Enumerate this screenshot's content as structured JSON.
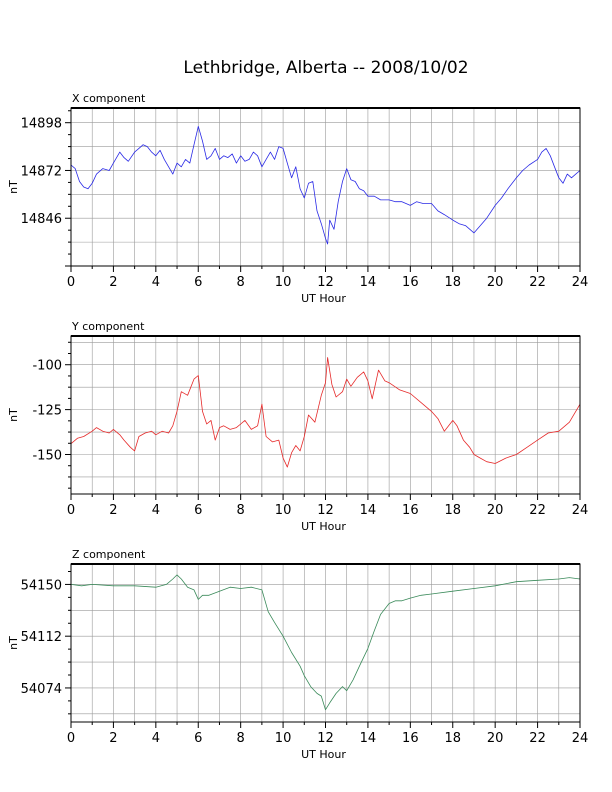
{
  "page": {
    "title": "Lethbridge, Alberta -- 2008/10/02"
  },
  "chart_data": [
    {
      "type": "line",
      "title": "X component",
      "xlabel": "UT Hour",
      "ylabel": "nT",
      "xlim": [
        0,
        24
      ],
      "ylim": [
        14820,
        14906
      ],
      "xticks": [
        "0",
        "2",
        "4",
        "6",
        "8",
        "10",
        "12",
        "14",
        "16",
        "18",
        "20",
        "22",
        "24"
      ],
      "yticks": [
        "14846",
        "14872",
        "14898"
      ],
      "grid": true,
      "color": "#2a2ae6",
      "series": [
        {
          "x": [
            0,
            0.2,
            0.4,
            0.6,
            0.8,
            1.0,
            1.2,
            1.5,
            1.8,
            2.0,
            2.3,
            2.5,
            2.7,
            3.0,
            3.2,
            3.4,
            3.6,
            3.8,
            4.0,
            4.2,
            4.4,
            4.6,
            4.8,
            5.0,
            5.2,
            5.4,
            5.6,
            5.8,
            6.0,
            6.2,
            6.4,
            6.6,
            6.8,
            7.0,
            7.2,
            7.4,
            7.6,
            7.8,
            8.0,
            8.2,
            8.4,
            8.6,
            8.8,
            9.0,
            9.2,
            9.4,
            9.6,
            9.8,
            10.0,
            10.2,
            10.4,
            10.6,
            10.8,
            11.0,
            11.2,
            11.4,
            11.6,
            11.8,
            12.0,
            12.1,
            12.2,
            12.4,
            12.6,
            12.8,
            13.0,
            13.2,
            13.4,
            13.6,
            13.8,
            14.0,
            14.3,
            14.6,
            15.0,
            15.3,
            15.6,
            16.0,
            16.3,
            16.6,
            17.0,
            17.3,
            17.6,
            18.0,
            18.3,
            18.6,
            19.0,
            19.3,
            19.6,
            20.0,
            20.3,
            20.6,
            21.0,
            21.3,
            21.6,
            22.0,
            22.2,
            22.4,
            22.6,
            22.8,
            23.0,
            23.2,
            23.4,
            23.6,
            23.8,
            24.0
          ],
          "values": [
            14875,
            14873,
            14866,
            14863,
            14862,
            14865,
            14870,
            14873,
            14872,
            14876,
            14882,
            14879,
            14877,
            14882,
            14884,
            14886,
            14885,
            14882,
            14880,
            14883,
            14878,
            14874,
            14870,
            14876,
            14874,
            14878,
            14876,
            14886,
            14896,
            14888,
            14878,
            14880,
            14884,
            14878,
            14880,
            14879,
            14881,
            14876,
            14880,
            14877,
            14878,
            14882,
            14880,
            14874,
            14878,
            14882,
            14878,
            14885,
            14884,
            14876,
            14868,
            14874,
            14862,
            14857,
            14865,
            14866,
            14850,
            14843,
            14835,
            14832,
            14845,
            14840,
            14855,
            14866,
            14873,
            14867,
            14866,
            14862,
            14861,
            14858,
            14858,
            14856,
            14856,
            14855,
            14855,
            14853,
            14855,
            14854,
            14854,
            14850,
            14848,
            14845,
            14843,
            14842,
            14838,
            14842,
            14846,
            14853,
            14857,
            14862,
            14868,
            14872,
            14875,
            14878,
            14882,
            14884,
            14880,
            14874,
            14868,
            14865,
            14870,
            14868,
            14870,
            14872
          ]
        }
      ]
    },
    {
      "type": "line",
      "title": "Y component",
      "xlabel": "UT Hour",
      "ylabel": "nT",
      "xlim": [
        0,
        24
      ],
      "ylim": [
        -172,
        -84
      ],
      "xticks": [
        "0",
        "2",
        "4",
        "6",
        "8",
        "10",
        "12",
        "14",
        "16",
        "18",
        "20",
        "22",
        "24"
      ],
      "yticks": [
        "-150",
        "-125",
        "-100"
      ],
      "grid": true,
      "color": "#e62a2a",
      "series": [
        {
          "x": [
            0,
            0.3,
            0.6,
            1.0,
            1.2,
            1.5,
            1.8,
            2.0,
            2.3,
            2.5,
            2.8,
            3.0,
            3.2,
            3.5,
            3.8,
            4.0,
            4.3,
            4.6,
            4.8,
            5.0,
            5.2,
            5.5,
            5.8,
            6.0,
            6.2,
            6.4,
            6.6,
            6.8,
            7.0,
            7.2,
            7.5,
            7.8,
            8.0,
            8.2,
            8.5,
            8.8,
            9.0,
            9.2,
            9.5,
            9.8,
            10.0,
            10.2,
            10.4,
            10.6,
            10.8,
            11.0,
            11.2,
            11.5,
            11.8,
            12.0,
            12.1,
            12.3,
            12.5,
            12.8,
            13.0,
            13.2,
            13.5,
            13.8,
            14.0,
            14.2,
            14.5,
            14.8,
            15.0,
            15.5,
            16.0,
            16.5,
            17.0,
            17.3,
            17.6,
            18.0,
            18.2,
            18.5,
            18.8,
            19.0,
            19.3,
            19.6,
            20.0,
            20.5,
            21.0,
            21.5,
            22.0,
            22.5,
            23.0,
            23.5,
            24.0
          ],
          "values": [
            -144,
            -141,
            -140,
            -137,
            -135,
            -137,
            -138,
            -136,
            -139,
            -142,
            -146,
            -148,
            -140,
            -138,
            -137,
            -139,
            -137,
            -138,
            -134,
            -126,
            -115,
            -117,
            -108,
            -106,
            -126,
            -133,
            -131,
            -142,
            -135,
            -134,
            -136,
            -135,
            -133,
            -131,
            -136,
            -134,
            -122,
            -140,
            -143,
            -142,
            -152,
            -157,
            -149,
            -145,
            -148,
            -140,
            -128,
            -132,
            -117,
            -110,
            -96,
            -111,
            -118,
            -115,
            -108,
            -112,
            -107,
            -104,
            -109,
            -119,
            -103,
            -109,
            -110,
            -114,
            -116,
            -121,
            -126,
            -130,
            -137,
            -131,
            -134,
            -142,
            -146,
            -150,
            -152,
            -154,
            -155,
            -152,
            -150,
            -146,
            -142,
            -138,
            -137,
            -132,
            -122
          ]
        }
      ]
    },
    {
      "type": "line",
      "title": "Z component",
      "xlabel": "UT Hour",
      "ylabel": "nT",
      "xlim": [
        0,
        24
      ],
      "ylim": [
        54049,
        54165
      ],
      "xticks": [
        "0",
        "2",
        "4",
        "6",
        "8",
        "10",
        "12",
        "14",
        "16",
        "18",
        "20",
        "22",
        "24"
      ],
      "yticks": [
        "54074",
        "54112",
        "54150"
      ],
      "grid": true,
      "color": "#3a8a5a",
      "series": [
        {
          "x": [
            0,
            0.5,
            1.0,
            2.0,
            3.0,
            4.0,
            4.5,
            4.8,
            5.0,
            5.2,
            5.5,
            5.8,
            6.0,
            6.2,
            6.5,
            7.0,
            7.5,
            8.0,
            8.5,
            9.0,
            9.3,
            9.6,
            10.0,
            10.4,
            10.8,
            11.0,
            11.3,
            11.6,
            11.8,
            12.0,
            12.2,
            12.5,
            12.8,
            13.0,
            13.3,
            13.6,
            14.0,
            14.3,
            14.6,
            15.0,
            15.3,
            15.6,
            16.0,
            16.5,
            17.0,
            18.0,
            19.0,
            20.0,
            21.0,
            22.0,
            23.0,
            23.5,
            24.0
          ],
          "values": [
            54150,
            54149,
            54150,
            54149,
            54149,
            54148,
            54150,
            54154,
            54157,
            54154,
            54148,
            54146,
            54139,
            54142,
            54142,
            54145,
            54148,
            54147,
            54148,
            54146,
            54130,
            54122,
            54112,
            54100,
            54090,
            54083,
            54075,
            54070,
            54068,
            54058,
            54063,
            54070,
            54075,
            54072,
            54080,
            54090,
            54103,
            54116,
            54128,
            54136,
            54138,
            54138,
            54140,
            54142,
            54143,
            54145,
            54147,
            54149,
            54152,
            54153,
            54154,
            54155,
            54154
          ]
        }
      ]
    }
  ]
}
